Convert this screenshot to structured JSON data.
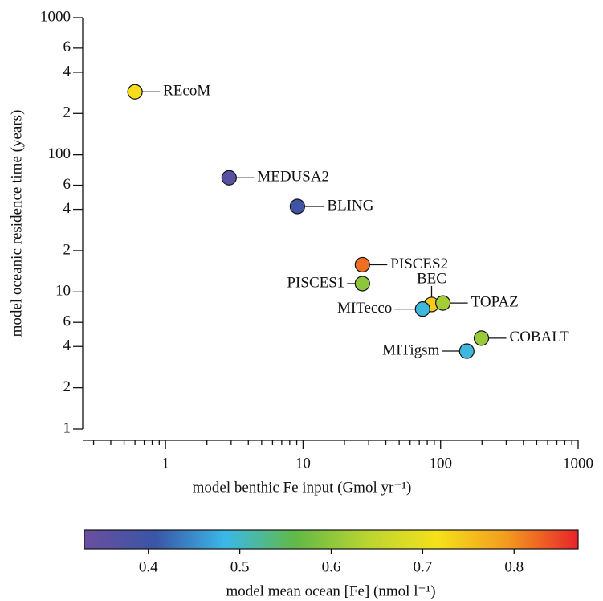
{
  "chart_data": {
    "type": "scatter",
    "x_label": "model benthic Fe input (Gmol yr⁻¹)",
    "y_label": "model oceanic residence time (years)",
    "xscale": "log",
    "yscale": "log",
    "xlim": [
      0.25,
      1000
    ],
    "ylim": [
      1,
      1000
    ],
    "xticks": [
      1,
      10,
      100,
      1000
    ],
    "yticks": [
      1,
      2,
      4,
      6,
      10,
      {
        "value": 20,
        "label": "2"
      },
      {
        "value": 40,
        "label": "4"
      },
      {
        "value": 60,
        "label": "6"
      },
      100,
      {
        "value": 200,
        "label": "2"
      },
      {
        "value": 400,
        "label": "4"
      },
      {
        "value": 600,
        "label": "6"
      },
      1000
    ],
    "labels": [
      "REcoM",
      "MEDUSA2",
      "BLING",
      "PISCES2",
      "PISCES1",
      "BEC",
      "TOPAZ",
      "MITecco",
      "COBALT",
      "MITigsm"
    ],
    "x": [
      0.6,
      2.9,
      9.1,
      27,
      27,
      86,
      104,
      74,
      198,
      155
    ],
    "y": [
      288,
      68,
      42,
      15.8,
      11.5,
      8.1,
      8.3,
      7.5,
      4.6,
      3.7
    ],
    "z": [
      0.72,
      0.36,
      0.4,
      0.82,
      0.6,
      0.74,
      0.62,
      0.49,
      0.61,
      0.49
    ],
    "colorbar": {
      "label": "model mean ocean [Fe] (nmol l⁻¹)",
      "lim": [
        0.33,
        0.87
      ],
      "ticks": [
        0.4,
        0.5,
        0.6,
        0.7,
        0.8
      ],
      "colormap": [
        "#6b4fa0",
        "#3a55a6",
        "#3bb8e8",
        "#62b946",
        "#b9d431",
        "#f5e11a",
        "#f39a1f",
        "#e8232a"
      ]
    }
  }
}
